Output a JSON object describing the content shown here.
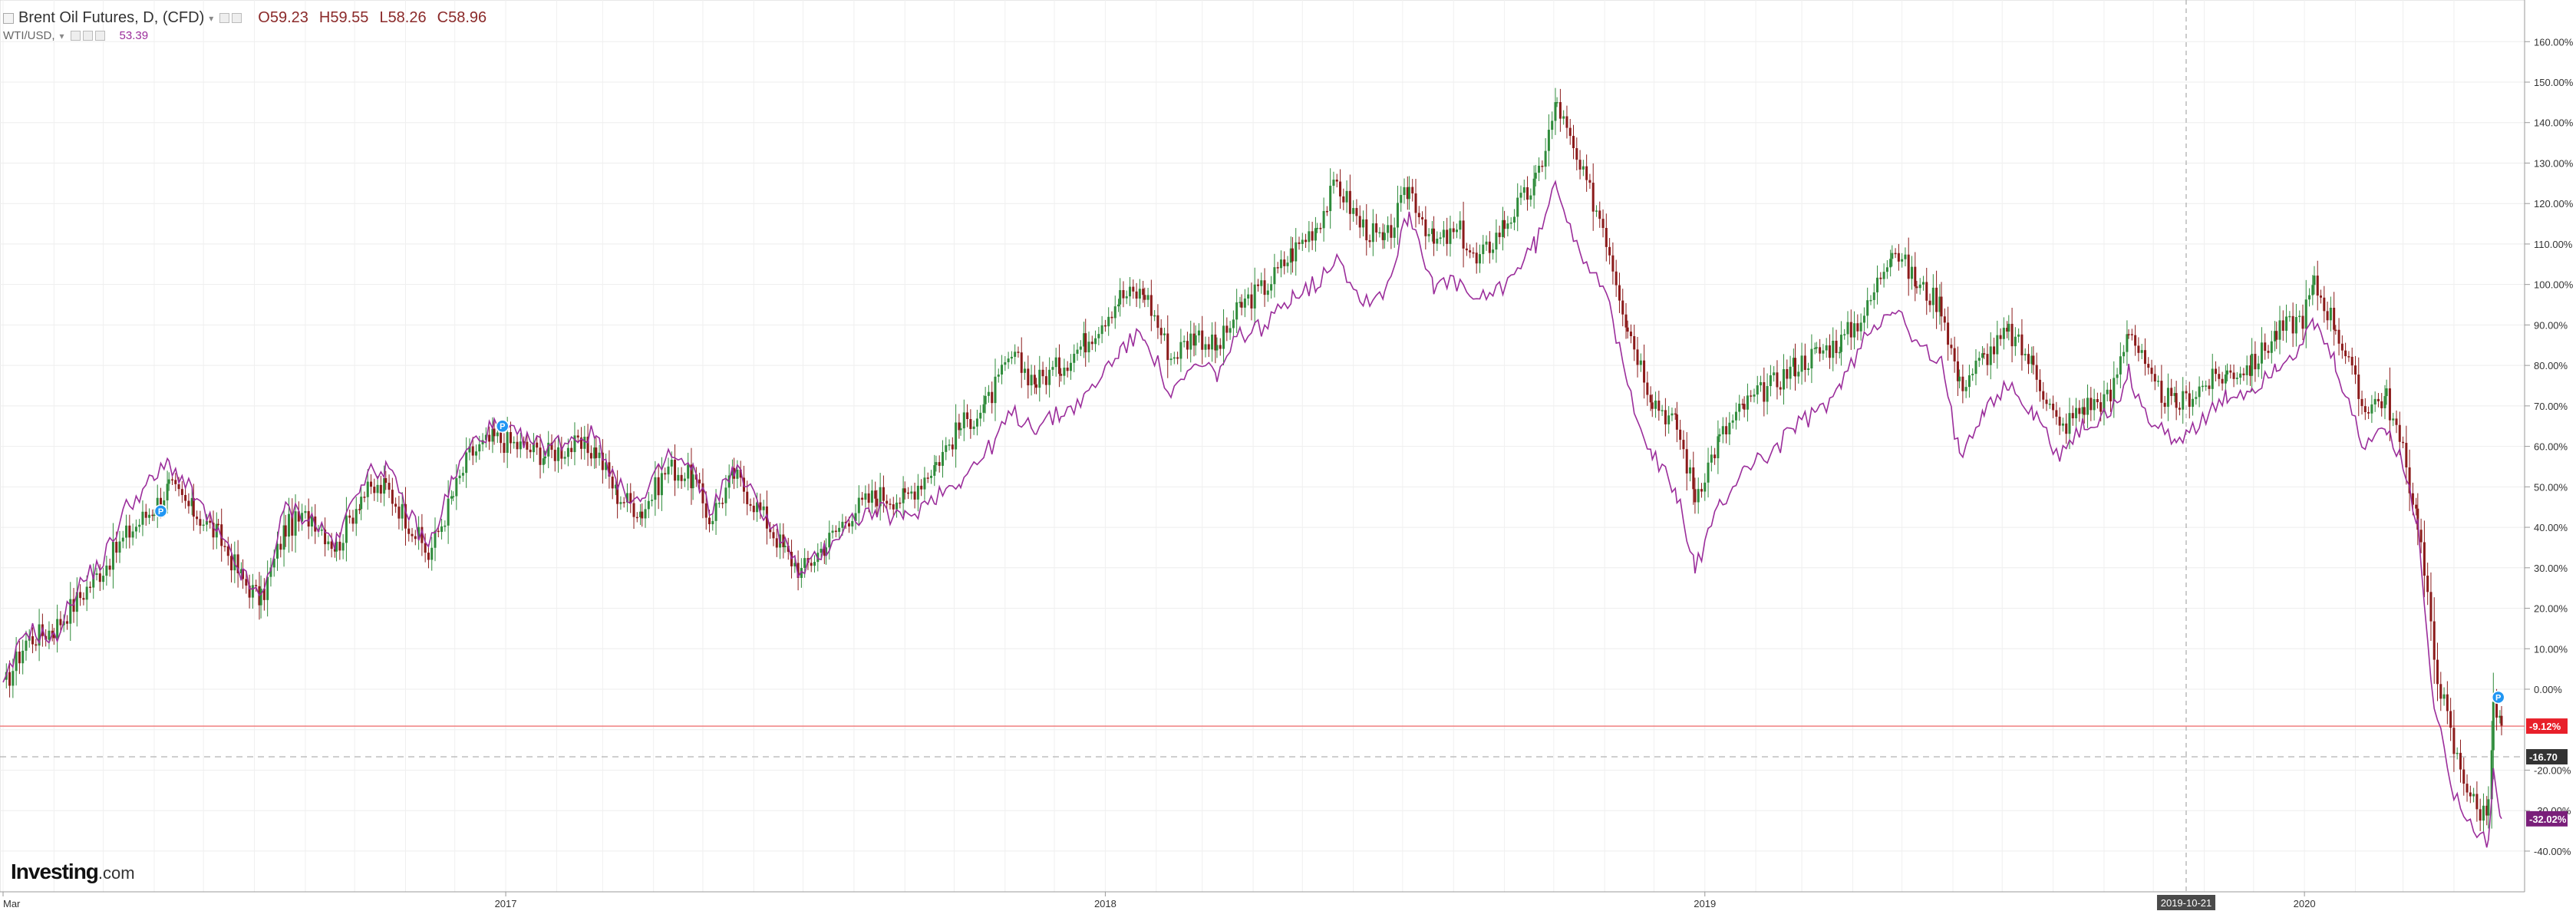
{
  "header": {
    "main_title": "Brent Oil Futures, D, (CFD)",
    "o_label": "O",
    "o_value": "59.23",
    "h_label": "H",
    "h_value": "59.55",
    "l_label": "L",
    "l_value": "58.26",
    "c_label": "C",
    "c_value": "58.96",
    "secondary_title": "WTI/USD,",
    "secondary_value": "53.39"
  },
  "logo": {
    "main": "Investing",
    "suffix": ".com"
  },
  "colors": {
    "up": "#2e8b3a",
    "down": "#8b1a1a",
    "wti_line": "#9b2d9b",
    "current_line": "#f08080",
    "badge_red": "#e8202a",
    "badge_purple": "#7a1f7a",
    "badge_dark": "#333333",
    "marker_blue": "#2196f3"
  },
  "chart_data": {
    "type": "line",
    "scale": "percent",
    "ylim": [
      -45,
      165
    ],
    "xlim": [
      "2016-03-01",
      "2020-04-30"
    ],
    "y_ticks": [
      "160.00%",
      "150.00%",
      "140.00%",
      "130.00%",
      "120.00%",
      "110.00%",
      "100.00%",
      "90.00%",
      "80.00%",
      "70.00%",
      "60.00%",
      "50.00%",
      "40.00%",
      "30.00%",
      "20.00%",
      "10.00%",
      "0.00%",
      "-20.00%",
      "-30.00%",
      "-40.00%"
    ],
    "x_ticks": [
      {
        "date": "2016-03-01",
        "label": "Mar"
      },
      {
        "date": "2017-01-01",
        "label": "2017"
      },
      {
        "date": "2018-01-01",
        "label": "2018"
      },
      {
        "date": "2019-01-01",
        "label": "2019"
      },
      {
        "date": "2020-01-01",
        "label": "2020"
      }
    ],
    "crosshair": {
      "date": "2019-10-21",
      "label": "2019-10-21"
    },
    "series": [
      {
        "name": "Brent Oil Futures, D, (CFD)",
        "style": "candlestick",
        "points": [
          [
            "2016-03-01",
            0
          ],
          [
            "2016-03-15",
            12
          ],
          [
            "2016-04-01",
            15
          ],
          [
            "2016-04-15",
            22
          ],
          [
            "2016-05-01",
            30
          ],
          [
            "2016-05-15",
            38
          ],
          [
            "2016-06-01",
            45
          ],
          [
            "2016-06-10",
            50
          ],
          [
            "2016-06-25",
            44
          ],
          [
            "2016-07-10",
            38
          ],
          [
            "2016-07-25",
            27
          ],
          [
            "2016-08-05",
            22
          ],
          [
            "2016-08-20",
            40
          ],
          [
            "2016-09-05",
            43
          ],
          [
            "2016-09-20",
            35
          ],
          [
            "2016-10-05",
            48
          ],
          [
            "2016-10-20",
            50
          ],
          [
            "2016-11-05",
            40
          ],
          [
            "2016-11-15",
            33
          ],
          [
            "2016-11-30",
            48
          ],
          [
            "2016-12-10",
            58
          ],
          [
            "2016-12-25",
            62
          ],
          [
            "2017-01-10",
            60
          ],
          [
            "2017-01-25",
            58
          ],
          [
            "2017-02-10",
            60
          ],
          [
            "2017-02-25",
            59
          ],
          [
            "2017-03-10",
            48
          ],
          [
            "2017-03-25",
            44
          ],
          [
            "2017-04-10",
            55
          ],
          [
            "2017-04-25",
            52
          ],
          [
            "2017-05-05",
            42
          ],
          [
            "2017-05-20",
            53
          ],
          [
            "2017-06-05",
            44
          ],
          [
            "2017-06-20",
            34
          ],
          [
            "2017-06-30",
            29
          ],
          [
            "2017-07-15",
            36
          ],
          [
            "2017-07-31",
            44
          ],
          [
            "2017-08-15",
            48
          ],
          [
            "2017-09-01",
            47
          ],
          [
            "2017-09-20",
            56
          ],
          [
            "2017-10-05",
            65
          ],
          [
            "2017-10-20",
            70
          ],
          [
            "2017-11-05",
            82
          ],
          [
            "2017-11-20",
            76
          ],
          [
            "2017-12-05",
            80
          ],
          [
            "2017-12-20",
            86
          ],
          [
            "2018-01-10",
            97
          ],
          [
            "2018-01-25",
            98
          ],
          [
            "2018-02-10",
            82
          ],
          [
            "2018-02-25",
            88
          ],
          [
            "2018-03-10",
            84
          ],
          [
            "2018-03-25",
            95
          ],
          [
            "2018-04-10",
            100
          ],
          [
            "2018-04-25",
            108
          ],
          [
            "2018-05-10",
            115
          ],
          [
            "2018-05-22",
            125
          ],
          [
            "2018-06-05",
            115
          ],
          [
            "2018-06-20",
            110
          ],
          [
            "2018-07-05",
            124
          ],
          [
            "2018-07-20",
            110
          ],
          [
            "2018-08-05",
            113
          ],
          [
            "2018-08-15",
            105
          ],
          [
            "2018-09-01",
            115
          ],
          [
            "2018-09-20",
            125
          ],
          [
            "2018-10-03",
            145
          ],
          [
            "2018-10-15",
            130
          ],
          [
            "2018-10-31",
            115
          ],
          [
            "2018-11-15",
            90
          ],
          [
            "2018-11-30",
            72
          ],
          [
            "2018-12-15",
            65
          ],
          [
            "2018-12-26",
            48
          ],
          [
            "2019-01-10",
            62
          ],
          [
            "2019-01-25",
            70
          ],
          [
            "2019-02-10",
            75
          ],
          [
            "2019-02-25",
            80
          ],
          [
            "2019-03-10",
            83
          ],
          [
            "2019-03-25",
            86
          ],
          [
            "2019-04-10",
            94
          ],
          [
            "2019-04-25",
            110
          ],
          [
            "2019-05-10",
            100
          ],
          [
            "2019-05-25",
            95
          ],
          [
            "2019-06-05",
            75
          ],
          [
            "2019-06-20",
            82
          ],
          [
            "2019-07-05",
            88
          ],
          [
            "2019-07-20",
            80
          ],
          [
            "2019-08-05",
            64
          ],
          [
            "2019-08-20",
            70
          ],
          [
            "2019-09-05",
            72
          ],
          [
            "2019-09-16",
            90
          ],
          [
            "2019-09-30",
            75
          ],
          [
            "2019-10-15",
            70
          ],
          [
            "2019-10-31",
            75
          ],
          [
            "2019-11-15",
            78
          ],
          [
            "2019-11-30",
            80
          ],
          [
            "2019-12-15",
            88
          ],
          [
            "2019-12-31",
            92
          ],
          [
            "2020-01-07",
            100
          ],
          [
            "2020-01-20",
            90
          ],
          [
            "2020-02-05",
            70
          ],
          [
            "2020-02-20",
            72
          ],
          [
            "2020-03-01",
            58
          ],
          [
            "2020-03-10",
            42
          ],
          [
            "2020-03-20",
            8
          ],
          [
            "2020-04-01",
            -15
          ],
          [
            "2020-04-15",
            -30
          ],
          [
            "2020-04-22",
            -30
          ],
          [
            "2020-04-25",
            -5
          ],
          [
            "2020-04-30",
            -9
          ]
        ]
      },
      {
        "name": "WTI/USD",
        "style": "line",
        "points": [
          [
            "2016-03-01",
            0
          ],
          [
            "2016-03-15",
            15
          ],
          [
            "2016-04-01",
            12
          ],
          [
            "2016-04-15",
            25
          ],
          [
            "2016-05-01",
            32
          ],
          [
            "2016-05-15",
            45
          ],
          [
            "2016-06-01",
            52
          ],
          [
            "2016-06-10",
            56
          ],
          [
            "2016-06-25",
            48
          ],
          [
            "2016-07-10",
            38
          ],
          [
            "2016-07-25",
            28
          ],
          [
            "2016-08-05",
            22
          ],
          [
            "2016-08-20",
            45
          ],
          [
            "2016-09-05",
            42
          ],
          [
            "2016-09-20",
            36
          ],
          [
            "2016-10-05",
            52
          ],
          [
            "2016-10-20",
            55
          ],
          [
            "2016-11-05",
            42
          ],
          [
            "2016-11-15",
            35
          ],
          [
            "2016-11-30",
            52
          ],
          [
            "2016-12-10",
            60
          ],
          [
            "2016-12-25",
            65
          ],
          [
            "2017-01-10",
            62
          ],
          [
            "2017-01-25",
            60
          ],
          [
            "2017-02-10",
            62
          ],
          [
            "2017-02-25",
            63
          ],
          [
            "2017-03-10",
            50
          ],
          [
            "2017-03-25",
            46
          ],
          [
            "2017-04-10",
            58
          ],
          [
            "2017-04-25",
            54
          ],
          [
            "2017-05-05",
            44
          ],
          [
            "2017-05-20",
            55
          ],
          [
            "2017-06-05",
            45
          ],
          [
            "2017-06-20",
            36
          ],
          [
            "2017-06-30",
            28
          ],
          [
            "2017-07-15",
            35
          ],
          [
            "2017-07-31",
            42
          ],
          [
            "2017-08-15",
            44
          ],
          [
            "2017-09-01",
            42
          ],
          [
            "2017-09-20",
            48
          ],
          [
            "2017-10-05",
            52
          ],
          [
            "2017-10-20",
            58
          ],
          [
            "2017-11-05",
            68
          ],
          [
            "2017-11-20",
            65
          ],
          [
            "2017-12-05",
            68
          ],
          [
            "2017-12-20",
            72
          ],
          [
            "2018-01-10",
            84
          ],
          [
            "2018-01-25",
            88
          ],
          [
            "2018-02-10",
            72
          ],
          [
            "2018-02-25",
            80
          ],
          [
            "2018-03-10",
            78
          ],
          [
            "2018-03-25",
            88
          ],
          [
            "2018-04-10",
            90
          ],
          [
            "2018-04-25",
            98
          ],
          [
            "2018-05-10",
            100
          ],
          [
            "2018-05-22",
            108
          ],
          [
            "2018-06-05",
            96
          ],
          [
            "2018-06-20",
            98
          ],
          [
            "2018-07-05",
            118
          ],
          [
            "2018-07-20",
            100
          ],
          [
            "2018-08-05",
            100
          ],
          [
            "2018-08-15",
            95
          ],
          [
            "2018-09-01",
            100
          ],
          [
            "2018-09-20",
            110
          ],
          [
            "2018-10-03",
            125
          ],
          [
            "2018-10-15",
            110
          ],
          [
            "2018-10-31",
            100
          ],
          [
            "2018-11-15",
            75
          ],
          [
            "2018-11-30",
            58
          ],
          [
            "2018-12-15",
            48
          ],
          [
            "2018-12-26",
            30
          ],
          [
            "2019-01-10",
            45
          ],
          [
            "2019-01-25",
            55
          ],
          [
            "2019-02-10",
            58
          ],
          [
            "2019-02-25",
            65
          ],
          [
            "2019-03-10",
            68
          ],
          [
            "2019-03-25",
            75
          ],
          [
            "2019-04-10",
            88
          ],
          [
            "2019-04-25",
            95
          ],
          [
            "2019-05-10",
            85
          ],
          [
            "2019-05-25",
            80
          ],
          [
            "2019-06-05",
            58
          ],
          [
            "2019-06-20",
            70
          ],
          [
            "2019-07-05",
            75
          ],
          [
            "2019-07-20",
            68
          ],
          [
            "2019-08-05",
            58
          ],
          [
            "2019-08-20",
            65
          ],
          [
            "2019-09-05",
            68
          ],
          [
            "2019-09-16",
            78
          ],
          [
            "2019-09-30",
            65
          ],
          [
            "2019-10-15",
            62
          ],
          [
            "2019-10-31",
            66
          ],
          [
            "2019-11-15",
            72
          ],
          [
            "2019-11-30",
            74
          ],
          [
            "2019-12-15",
            80
          ],
          [
            "2019-12-31",
            85
          ],
          [
            "2020-01-07",
            90
          ],
          [
            "2020-01-20",
            80
          ],
          [
            "2020-02-05",
            60
          ],
          [
            "2020-02-20",
            65
          ],
          [
            "2020-03-01",
            55
          ],
          [
            "2020-03-10",
            40
          ],
          [
            "2020-03-20",
            -5
          ],
          [
            "2020-04-01",
            -25
          ],
          [
            "2020-04-15",
            -35
          ],
          [
            "2020-04-22",
            -38
          ],
          [
            "2020-04-25",
            -20
          ],
          [
            "2020-04-30",
            -32
          ]
        ]
      }
    ],
    "price_levels": [
      {
        "value": -9.12,
        "label": "-9.12%",
        "style": "current",
        "color_key": "badge_red"
      },
      {
        "value": -16.7,
        "label": "-16.70",
        "style": "dashed",
        "color_key": "badge_dark"
      },
      {
        "value": -32.02,
        "label": "-32.02%",
        "style": "badge",
        "color_key": "badge_purple"
      }
    ],
    "markers": [
      {
        "date": "2016-06-05",
        "value": 44,
        "label": "P"
      },
      {
        "date": "2016-12-30",
        "value": 65,
        "label": "P"
      },
      {
        "date": "2020-04-28",
        "value": -2,
        "label": "P"
      }
    ]
  }
}
